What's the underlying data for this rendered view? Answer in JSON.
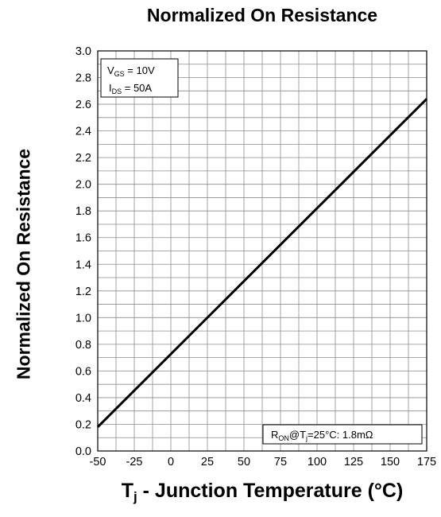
{
  "chart_data": {
    "type": "line",
    "title": "Normalized On Resistance",
    "ylabel": "Normalized On Resistance",
    "xlabel": {
      "symbol": "T",
      "sub": "j",
      "text": " - Junction Temperature (°C)"
    },
    "xlim": [
      -50,
      175
    ],
    "ylim": [
      0.0,
      3.0
    ],
    "x_ticks": [
      -50,
      -25,
      0,
      25,
      50,
      75,
      100,
      125,
      150,
      175
    ],
    "y_ticks": [
      "0.0",
      "0.2",
      "0.4",
      "0.6",
      "0.8",
      "1.0",
      "1.2",
      "1.4",
      "1.6",
      "1.8",
      "2.0",
      "2.2",
      "2.4",
      "2.6",
      "2.8",
      "3.0"
    ],
    "grid": true,
    "grid_minor_x": 12.5,
    "grid_minor_y": 0.1,
    "series": [
      {
        "x": [
          -50,
          175
        ],
        "y": [
          0.18,
          2.64
        ]
      }
    ],
    "conditions": [
      {
        "main": "V",
        "sub": "GS",
        "rest": " = 10V"
      },
      {
        "main": "I",
        "sub": "DS",
        "rest": " =  50A"
      }
    ],
    "annotation": {
      "main": "R",
      "sub": "ON",
      "mid": "@T",
      "sub2": "j",
      "rest": "=25°C: 1.8mΩ"
    }
  }
}
